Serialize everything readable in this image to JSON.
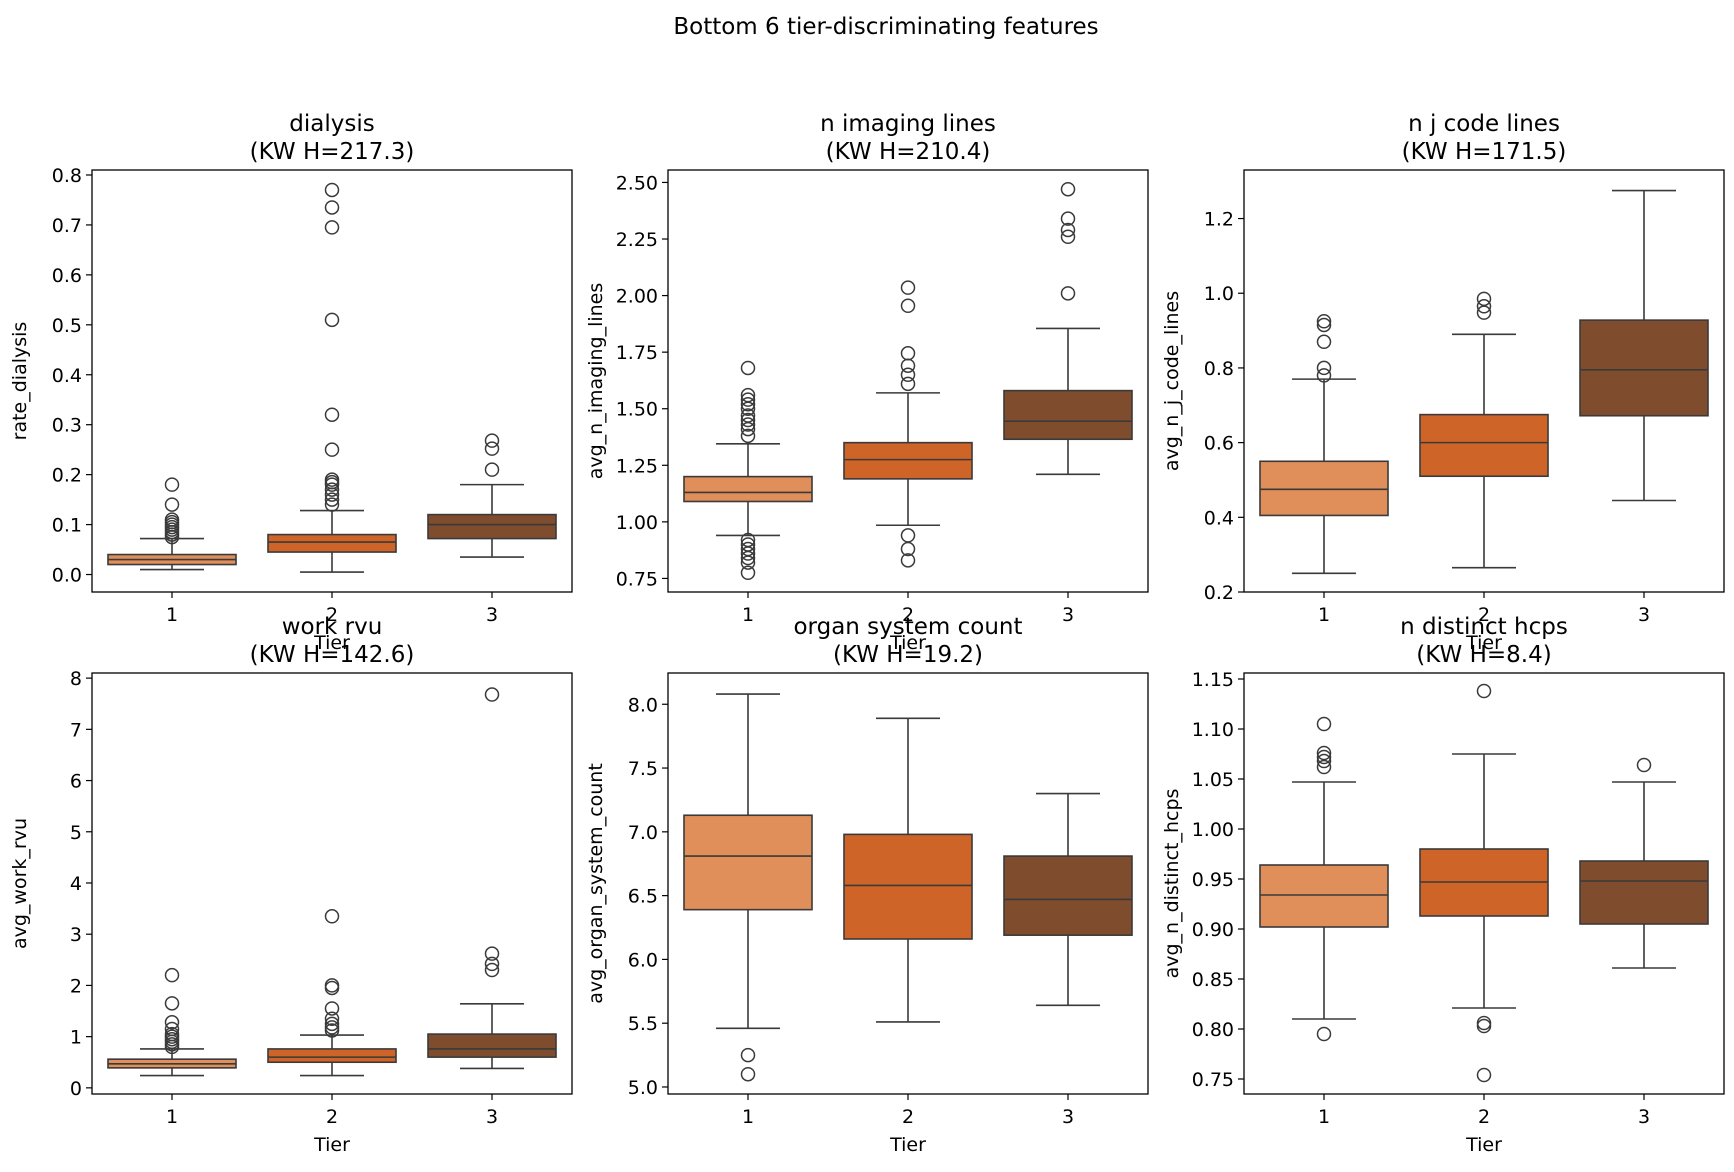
{
  "suptitle": "Bottom 6 tier-discriminating features",
  "palette": [
    "#E08E5A",
    "#CF6429",
    "#7F4C2D"
  ],
  "chart_data": [
    {
      "type": "box",
      "title": "dialysis",
      "subtitle": "(KW H=217.3)",
      "xlabel": "Tier",
      "ylabel": "rate_dialysis",
      "categories": [
        "1",
        "2",
        "3"
      ],
      "ylim": [
        -0.035,
        0.81
      ],
      "yticks": [
        0.0,
        0.1,
        0.2,
        0.3,
        0.4,
        0.5,
        0.6,
        0.7,
        0.8
      ],
      "ytick_labels": [
        "0.0",
        "0.1",
        "0.2",
        "0.3",
        "0.4",
        "0.5",
        "0.6",
        "0.7",
        "0.8"
      ],
      "boxes": [
        {
          "whislo": 0.01,
          "q1": 0.02,
          "med": 0.03,
          "q3": 0.04,
          "whishi": 0.072,
          "fliers": [
            0.075,
            0.08,
            0.085,
            0.09,
            0.095,
            0.1,
            0.105,
            0.11,
            0.14,
            0.18
          ]
        },
        {
          "whislo": 0.005,
          "q1": 0.045,
          "med": 0.065,
          "q3": 0.08,
          "whishi": 0.128,
          "fliers": [
            0.14,
            0.15,
            0.16,
            0.17,
            0.18,
            0.185,
            0.19,
            0.25,
            0.32,
            0.51,
            0.695,
            0.735,
            0.77
          ]
        },
        {
          "whislo": 0.035,
          "q1": 0.072,
          "med": 0.1,
          "q3": 0.12,
          "whishi": 0.18,
          "fliers": [
            0.21,
            0.252,
            0.268
          ]
        }
      ]
    },
    {
      "type": "box",
      "title": "n imaging lines",
      "subtitle": "(KW H=210.4)",
      "xlabel": "Tier",
      "ylabel": "avg_n_imaging_lines",
      "categories": [
        "1",
        "2",
        "3"
      ],
      "ylim": [
        0.69,
        2.555
      ],
      "yticks": [
        0.75,
        1.0,
        1.25,
        1.5,
        1.75,
        2.0,
        2.25,
        2.5
      ],
      "ytick_labels": [
        "0.75",
        "1.00",
        "1.25",
        "1.50",
        "1.75",
        "2.00",
        "2.25",
        "2.50"
      ],
      "boxes": [
        {
          "whislo": 0.94,
          "q1": 1.09,
          "med": 1.13,
          "q3": 1.2,
          "whishi": 1.345,
          "fliers": [
            0.92,
            0.9,
            0.88,
            0.86,
            0.84,
            0.82,
            0.775,
            1.38,
            1.41,
            1.43,
            1.45,
            1.47,
            1.5,
            1.52,
            1.54,
            1.56,
            1.68
          ]
        },
        {
          "whislo": 0.985,
          "q1": 1.19,
          "med": 1.275,
          "q3": 1.35,
          "whishi": 1.57,
          "fliers": [
            0.94,
            0.88,
            0.83,
            1.61,
            1.65,
            1.69,
            1.745,
            1.955,
            2.035
          ]
        },
        {
          "whislo": 1.21,
          "q1": 1.365,
          "med": 1.445,
          "q3": 1.58,
          "whishi": 1.855,
          "fliers": [
            2.01,
            2.26,
            2.29,
            2.34,
            2.47
          ]
        }
      ]
    },
    {
      "type": "box",
      "title": "n j code lines",
      "subtitle": "(KW H=171.5)",
      "xlabel": "Tier",
      "ylabel": "avg_n_j_code_lines",
      "categories": [
        "1",
        "2",
        "3"
      ],
      "ylim": [
        0.2,
        1.33
      ],
      "yticks": [
        0.2,
        0.4,
        0.6,
        0.8,
        1.0,
        1.2
      ],
      "ytick_labels": [
        "0.2",
        "0.4",
        "0.6",
        "0.8",
        "1.0",
        "1.2"
      ],
      "boxes": [
        {
          "whislo": 0.25,
          "q1": 0.405,
          "med": 0.475,
          "q3": 0.55,
          "whishi": 0.77,
          "fliers": [
            0.78,
            0.8,
            0.87,
            0.915,
            0.925
          ]
        },
        {
          "whislo": 0.265,
          "q1": 0.51,
          "med": 0.6,
          "q3": 0.675,
          "whishi": 0.89,
          "fliers": [
            0.948,
            0.965,
            0.985
          ]
        },
        {
          "whislo": 0.445,
          "q1": 0.672,
          "med": 0.795,
          "q3": 0.928,
          "whishi": 1.275,
          "fliers": []
        }
      ]
    },
    {
      "type": "box",
      "title": "work rvu",
      "subtitle": "(KW H=142.6)",
      "xlabel": "Tier",
      "ylabel": "avg_work_rvu",
      "categories": [
        "1",
        "2",
        "3"
      ],
      "ylim": [
        -0.12,
        8.1
      ],
      "yticks": [
        0,
        1,
        2,
        3,
        4,
        5,
        6,
        7,
        8
      ],
      "ytick_labels": [
        "0",
        "1",
        "2",
        "3",
        "4",
        "5",
        "6",
        "7",
        "8"
      ],
      "boxes": [
        {
          "whislo": 0.24,
          "q1": 0.39,
          "med": 0.47,
          "q3": 0.56,
          "whishi": 0.76,
          "fliers": [
            0.8,
            0.85,
            0.9,
            0.95,
            1.0,
            1.05,
            1.15,
            1.28,
            1.65,
            2.2
          ]
        },
        {
          "whislo": 0.24,
          "q1": 0.5,
          "med": 0.6,
          "q3": 0.76,
          "whishi": 1.03,
          "fliers": [
            1.12,
            1.18,
            1.25,
            1.35,
            1.55,
            1.95,
            2.0,
            3.35
          ]
        },
        {
          "whislo": 0.38,
          "q1": 0.6,
          "med": 0.76,
          "q3": 1.05,
          "whishi": 1.64,
          "fliers": [
            2.3,
            2.42,
            2.62,
            7.68
          ]
        }
      ]
    },
    {
      "type": "box",
      "title": "organ system count",
      "subtitle": "(KW H=19.2)",
      "xlabel": "Tier",
      "ylabel": "avg_organ_system_count",
      "categories": [
        "1",
        "2",
        "3"
      ],
      "ylim": [
        4.945,
        8.245
      ],
      "yticks": [
        5.0,
        5.5,
        6.0,
        6.5,
        7.0,
        7.5,
        8.0
      ],
      "ytick_labels": [
        "5.0",
        "5.5",
        "6.0",
        "6.5",
        "7.0",
        "7.5",
        "8.0"
      ],
      "boxes": [
        {
          "whislo": 5.46,
          "q1": 6.39,
          "med": 6.81,
          "q3": 7.13,
          "whishi": 8.08,
          "fliers": [
            5.25,
            5.1
          ]
        },
        {
          "whislo": 5.51,
          "q1": 6.16,
          "med": 6.58,
          "q3": 6.98,
          "whishi": 7.89,
          "fliers": []
        },
        {
          "whislo": 5.64,
          "q1": 6.19,
          "med": 6.47,
          "q3": 6.81,
          "whishi": 7.3,
          "fliers": []
        }
      ]
    },
    {
      "type": "box",
      "title": "n distinct hcps",
      "subtitle": "(KW H=8.4)",
      "xlabel": "Tier",
      "ylabel": "avg_n_distinct_hcps",
      "categories": [
        "1",
        "2",
        "3"
      ],
      "ylim": [
        0.735,
        1.156
      ],
      "yticks": [
        0.75,
        0.8,
        0.85,
        0.9,
        0.95,
        1.0,
        1.05,
        1.1,
        1.15
      ],
      "ytick_labels": [
        "0.75",
        "0.80",
        "0.85",
        "0.90",
        "0.95",
        "1.00",
        "1.05",
        "1.10",
        "1.15"
      ],
      "boxes": [
        {
          "whislo": 0.81,
          "q1": 0.902,
          "med": 0.934,
          "q3": 0.964,
          "whishi": 1.047,
          "fliers": [
            0.795,
            1.062,
            1.068,
            1.072,
            1.076,
            1.105
          ]
        },
        {
          "whislo": 0.821,
          "q1": 0.913,
          "med": 0.947,
          "q3": 0.98,
          "whishi": 1.075,
          "fliers": [
            0.806,
            0.803,
            0.754,
            1.138
          ]
        },
        {
          "whislo": 0.861,
          "q1": 0.905,
          "med": 0.948,
          "q3": 0.968,
          "whishi": 1.047,
          "fliers": [
            1.064
          ]
        }
      ]
    }
  ]
}
